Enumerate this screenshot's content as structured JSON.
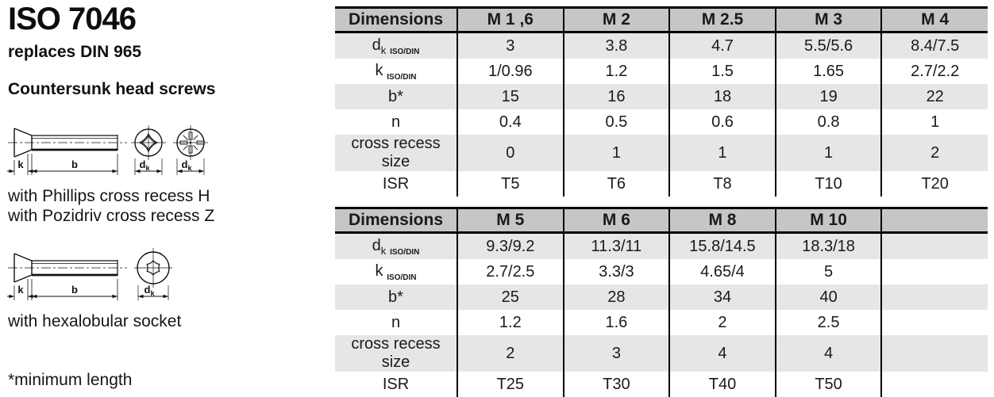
{
  "page": {
    "title": "ISO 7046",
    "subtitle": "replaces DIN 965",
    "heading": "Countersunk head screws",
    "caption_phillips": "with Phillips cross recess H",
    "caption_pozidriv": "with Pozidriv cross recess Z",
    "caption_hexalobular": "with hexalobular socket",
    "footnote": "*minimum length"
  },
  "drawings": {
    "dim_k": "k",
    "dim_b": "b",
    "dim_d_main": "d",
    "dim_d_sub": "k"
  },
  "colors": {
    "header_bg": "#c6c6c6",
    "stripe_bg": "#e6e6e6",
    "border": "#000000"
  },
  "tables": [
    {
      "header": [
        "Dimensions",
        "M 1 ,6",
        "M 2",
        "M 2.5",
        "M 3",
        "M 4"
      ],
      "rows": [
        {
          "label": {
            "main": "d",
            "sub": "k",
            "note": "ISO/DIN"
          },
          "values": [
            "3",
            "3.8",
            "4.7",
            "5.5/5.6",
            "8.4/7.5"
          ]
        },
        {
          "label": {
            "main": "k",
            "note": "ISO/DIN"
          },
          "values": [
            "1/0.96",
            "1.2",
            "1.5",
            "1.65",
            "2.7/2.2"
          ]
        },
        {
          "label": {
            "main": "b*"
          },
          "values": [
            "15",
            "16",
            "18",
            "19",
            "22"
          ]
        },
        {
          "label": {
            "main": "n"
          },
          "values": [
            "0.4",
            "0.5",
            "0.6",
            "0.8",
            "1"
          ]
        },
        {
          "label": {
            "main": "cross recess size"
          },
          "values": [
            "0",
            "1",
            "1",
            "1",
            "2"
          ]
        },
        {
          "label": {
            "main": "ISR"
          },
          "values": [
            "T5",
            "T6",
            "T8",
            "T10",
            "T20"
          ]
        }
      ]
    },
    {
      "header": [
        "Dimensions",
        "M 5",
        "M 6",
        "M 8",
        "M 10",
        ""
      ],
      "rows": [
        {
          "label": {
            "main": "d",
            "sub": "k",
            "note": "ISO/DIN"
          },
          "values": [
            "9.3/9.2",
            "11.3/11",
            "15.8/14.5",
            "18.3/18",
            ""
          ]
        },
        {
          "label": {
            "main": "k",
            "note": "ISO/DIN"
          },
          "values": [
            "2.7/2.5",
            "3.3/3",
            "4.65/4",
            "5",
            ""
          ]
        },
        {
          "label": {
            "main": "b*"
          },
          "values": [
            "25",
            "28",
            "34",
            "40",
            ""
          ]
        },
        {
          "label": {
            "main": "n"
          },
          "values": [
            "1.2",
            "1.6",
            "2",
            "2.5",
            ""
          ]
        },
        {
          "label": {
            "main": "cross recess size"
          },
          "values": [
            "2",
            "3",
            "4",
            "4",
            ""
          ]
        },
        {
          "label": {
            "main": "ISR"
          },
          "values": [
            "T25",
            "T30",
            "T40",
            "T50",
            ""
          ]
        }
      ]
    }
  ]
}
